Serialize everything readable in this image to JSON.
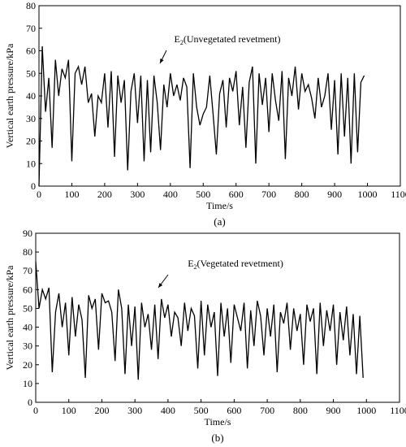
{
  "chart_data": [
    {
      "type": "line",
      "xlabel": "Time/s",
      "ylabel": "Vertical earth pressure/kPa",
      "caption": "(a)",
      "annotation": {
        "main": "E",
        "subscript": "2",
        "text": "(Unvegetated revetment)"
      },
      "color": "#000000",
      "xlim": [
        0,
        1100
      ],
      "xticks": [
        0,
        100,
        200,
        300,
        400,
        500,
        600,
        700,
        800,
        900,
        1000,
        1100
      ],
      "ylim": [
        0,
        80
      ],
      "yticks": [
        0,
        10,
        20,
        30,
        40,
        50,
        60,
        70,
        80
      ],
      "x": [
        0,
        10,
        20,
        30,
        40,
        50,
        60,
        70,
        80,
        90,
        100,
        110,
        120,
        130,
        140,
        150,
        160,
        170,
        180,
        190,
        200,
        210,
        220,
        230,
        240,
        250,
        260,
        270,
        280,
        290,
        300,
        310,
        320,
        330,
        340,
        350,
        360,
        370,
        380,
        390,
        400,
        410,
        420,
        430,
        440,
        450,
        460,
        470,
        480,
        490,
        500,
        510,
        520,
        530,
        540,
        550,
        560,
        570,
        580,
        590,
        600,
        610,
        620,
        630,
        640,
        650,
        660,
        670,
        680,
        690,
        700,
        710,
        720,
        730,
        740,
        750,
        760,
        770,
        780,
        790,
        800,
        810,
        820,
        830,
        840,
        850,
        860,
        870,
        880,
        890,
        900,
        910,
        920,
        930,
        940,
        950,
        960,
        970,
        980,
        990
      ],
      "values": [
        0,
        62,
        33,
        48,
        17,
        56,
        40,
        52,
        48,
        56,
        11,
        50,
        53,
        45,
        53,
        37,
        41,
        22,
        40,
        37,
        50,
        26,
        51,
        13,
        49,
        37,
        47,
        7,
        42,
        50,
        28,
        49,
        11,
        47,
        15,
        49,
        37,
        16,
        45,
        35,
        50,
        40,
        45,
        38,
        48,
        44,
        8,
        50,
        35,
        27,
        32,
        35,
        49,
        32,
        14,
        41,
        47,
        26,
        48,
        42,
        51,
        27,
        44,
        17,
        46,
        53,
        10,
        50,
        36,
        48,
        24,
        50,
        38,
        29,
        51,
        12,
        48,
        40,
        53,
        34,
        50,
        42,
        45,
        39,
        30,
        48,
        35,
        40,
        50,
        25,
        47,
        14,
        50,
        22,
        48,
        10,
        50,
        15,
        46,
        49
      ]
    },
    {
      "type": "line",
      "xlabel": "Time/s",
      "ylabel": "Vertical earth pressure/kPa",
      "caption": "(b)",
      "annotation": {
        "main": "E",
        "subscript": "2",
        "text": "(Vegetated revetment)"
      },
      "color": "#000000",
      "xlim": [
        0,
        1100
      ],
      "xticks": [
        0,
        100,
        200,
        300,
        400,
        500,
        600,
        700,
        800,
        900,
        1000,
        1100
      ],
      "ylim": [
        0,
        90
      ],
      "yticks": [
        0,
        10,
        20,
        30,
        40,
        50,
        60,
        70,
        80,
        90
      ],
      "x": [
        0,
        10,
        20,
        30,
        40,
        50,
        60,
        70,
        80,
        90,
        100,
        110,
        120,
        130,
        140,
        150,
        160,
        170,
        180,
        190,
        200,
        210,
        220,
        230,
        240,
        250,
        260,
        270,
        280,
        290,
        300,
        310,
        320,
        330,
        340,
        350,
        360,
        370,
        380,
        390,
        400,
        410,
        420,
        430,
        440,
        450,
        460,
        470,
        480,
        490,
        500,
        510,
        520,
        530,
        540,
        550,
        560,
        570,
        580,
        590,
        600,
        610,
        620,
        630,
        640,
        650,
        660,
        670,
        680,
        690,
        700,
        710,
        720,
        730,
        740,
        750,
        760,
        770,
        780,
        790,
        800,
        810,
        820,
        830,
        840,
        850,
        860,
        870,
        880,
        890,
        900,
        910,
        920,
        930,
        940,
        950,
        960,
        970,
        980,
        990
      ],
      "values": [
        75,
        50,
        60,
        55,
        61,
        16,
        48,
        58,
        40,
        53,
        25,
        56,
        35,
        52,
        44,
        13,
        57,
        50,
        55,
        28,
        58,
        53,
        54,
        48,
        22,
        60,
        50,
        15,
        52,
        30,
        51,
        12,
        53,
        40,
        47,
        28,
        52,
        23,
        55,
        45,
        52,
        35,
        48,
        45,
        30,
        53,
        38,
        50,
        46,
        18,
        54,
        25,
        52,
        40,
        48,
        14,
        53,
        35,
        50,
        21,
        52,
        45,
        38,
        53,
        18,
        49,
        30,
        54,
        46,
        25,
        50,
        35,
        52,
        16,
        48,
        42,
        53,
        28,
        50,
        38,
        47,
        20,
        52,
        43,
        50,
        15,
        53,
        30,
        49,
        38,
        52,
        20,
        48,
        33,
        51,
        25,
        47,
        15,
        46,
        13
      ]
    }
  ]
}
